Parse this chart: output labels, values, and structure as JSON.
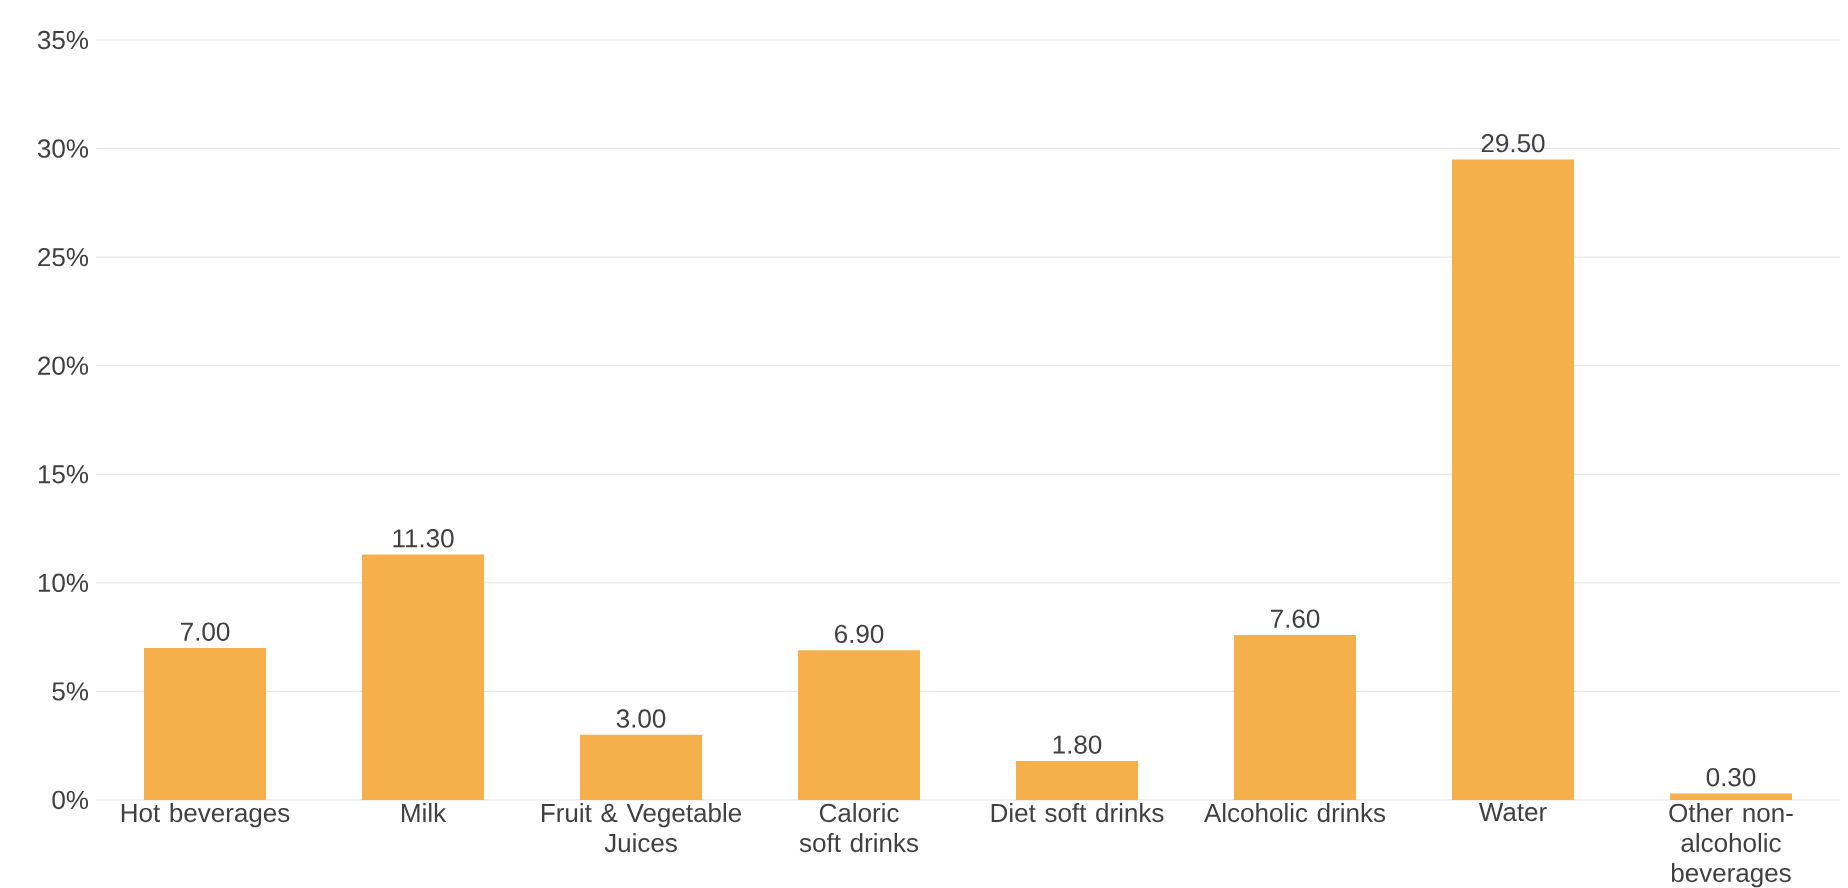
{
  "chart_data": {
    "type": "bar",
    "categories": [
      "Hot beverages",
      "Milk",
      "Fruit & Vegetable Juices",
      "Caloric soft drinks",
      "Diet soft drinks",
      "Alcoholic drinks",
      "Water",
      "Other non-alcoholic beverages"
    ],
    "values": [
      7.0,
      11.3,
      3.0,
      6.9,
      1.8,
      7.6,
      29.5,
      0.3
    ],
    "value_labels": [
      "7.00",
      "11.30",
      "3.00",
      "6.90",
      "1.80",
      "7.60",
      "29.50",
      "0.30"
    ],
    "color": "#f5b04c",
    "ylim": [
      0,
      35
    ],
    "yticks": [
      {
        "value": 0,
        "label": "0%"
      },
      {
        "value": 5,
        "label": "5%"
      },
      {
        "value": 10,
        "label": "10%"
      },
      {
        "value": 15,
        "label": "15%"
      },
      {
        "value": 20,
        "label": "20%"
      },
      {
        "value": 25,
        "label": "25%"
      },
      {
        "value": 30,
        "label": "30%"
      },
      {
        "value": 35,
        "label": "35%"
      }
    ],
    "grid": "y"
  }
}
